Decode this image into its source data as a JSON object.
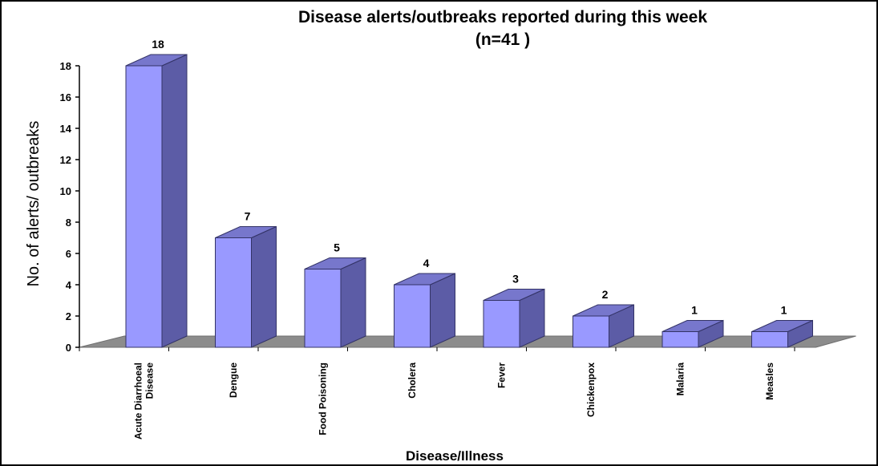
{
  "chart_data": {
    "type": "bar",
    "title": "Disease alerts/outbreaks reported during this week",
    "subtitle": "(n=41 )",
    "xlabel": "Disease/Illness",
    "ylabel": "No. of alerts/ outbreaks",
    "categories": [
      [
        "Acute Diarrhoeal",
        "Disease"
      ],
      [
        "Dengue"
      ],
      [
        "Food Poisoning"
      ],
      [
        "Cholera"
      ],
      [
        "Fever"
      ],
      [
        "Chickenpox"
      ],
      [
        "Malaria"
      ],
      [
        "Measles"
      ]
    ],
    "values": [
      18,
      7,
      5,
      4,
      3,
      2,
      1,
      1
    ],
    "ylim": [
      0,
      18
    ],
    "yticks": [
      0,
      2,
      4,
      6,
      8,
      10,
      12,
      14,
      16,
      18
    ],
    "grid": false,
    "legend": "none",
    "colors": {
      "bar_front": "#9999ff",
      "bar_side": "#5c5ca6",
      "bar_top": "#7777cc",
      "floor": "#8c8c8c",
      "text": "#000000"
    }
  }
}
